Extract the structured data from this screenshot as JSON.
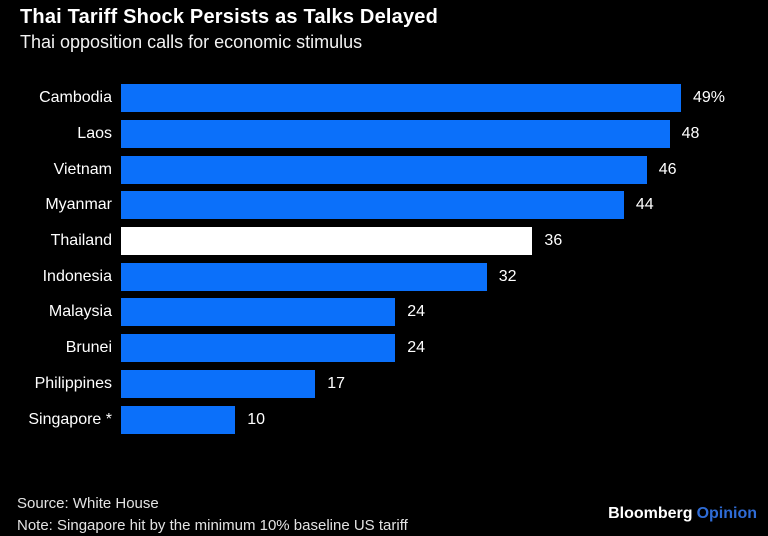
{
  "chart_data": {
    "type": "bar",
    "orientation": "horizontal",
    "title": "Thai Tariff Shock Persists as Talks Delayed",
    "subtitle": "Thai opposition calls for economic stimulus",
    "categories": [
      "Cambodia",
      "Laos",
      "Vietnam",
      "Myanmar",
      "Thailand",
      "Indonesia",
      "Malaysia",
      "Brunei",
      "Philippines",
      "Singapore *"
    ],
    "values": [
      49,
      48,
      46,
      44,
      36,
      32,
      24,
      24,
      17,
      10
    ],
    "value_labels": [
      "49%",
      "48",
      "46",
      "44",
      "36",
      "32",
      "24",
      "24",
      "17",
      "10"
    ],
    "unit": "%",
    "xlim": [
      0,
      49
    ],
    "grid": false,
    "legend": false,
    "highlight_category": "Thailand",
    "colors": {
      "bar": "#0b70fa",
      "highlight_bar": "#ffffff",
      "background": "#000000",
      "text": "#ffffff",
      "footer_text": "#e3e3e3",
      "brand_suffix": "#2f6cd6"
    }
  },
  "footer": {
    "source": "Source: White House",
    "note": "Note: Singapore hit by the minimum 10% baseline US tariff",
    "brand": "Bloomberg",
    "brand_suffix": "Opinion"
  }
}
